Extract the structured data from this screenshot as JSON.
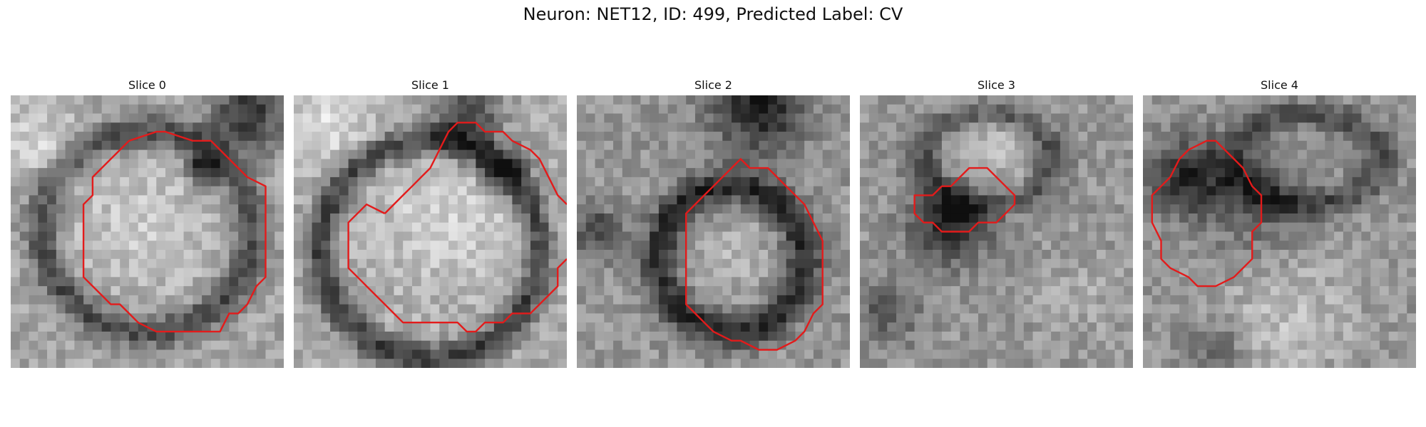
{
  "figure": {
    "title": "Neuron: NET12, ID: 499, Predicted Label: CV",
    "contour_color": "#e31b1b"
  },
  "panels": [
    {
      "title": "Slice 0"
    },
    {
      "title": "Slice 1"
    },
    {
      "title": "Slice 2"
    },
    {
      "title": "Slice 3"
    },
    {
      "title": "Slice 4"
    }
  ]
}
